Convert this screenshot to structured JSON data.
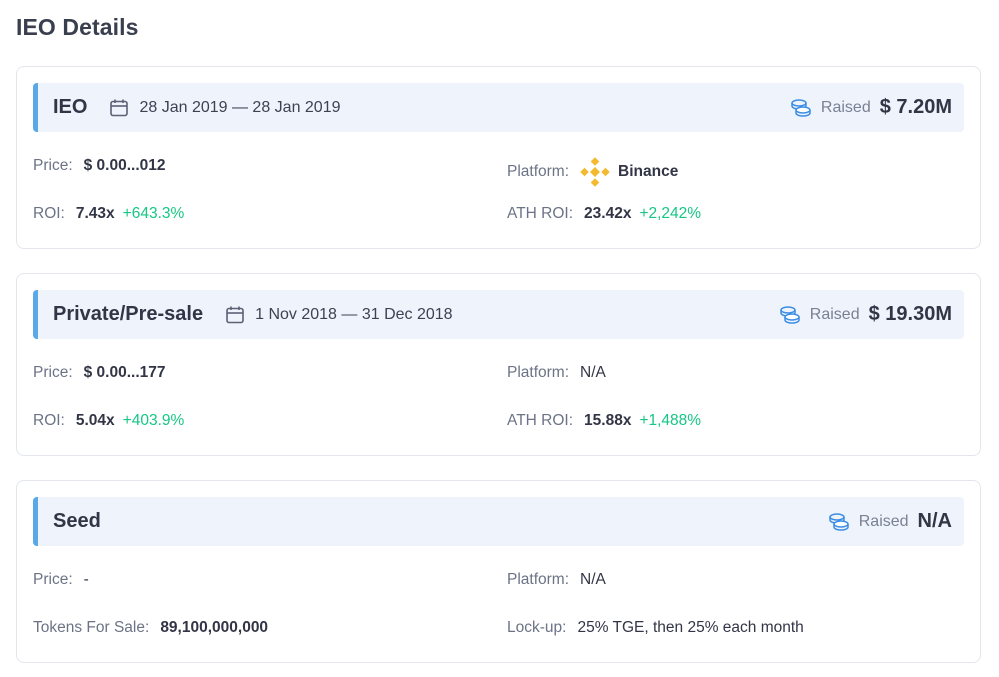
{
  "page_title": "IEO Details",
  "rounds": [
    {
      "name": "IEO",
      "dates": "28 Jan 2019 — 28 Jan 2019",
      "raised_label": "Raised",
      "raised_value": "$ 7.20M",
      "price_label": "Price:",
      "price_value": "$ 0.00...012",
      "platform_label": "Platform:",
      "platform_value": "Binance",
      "platform_icon": "binance-icon",
      "roi_label": "ROI:",
      "roi_value": "7.43x",
      "roi_pct": "+643.3%",
      "ath_roi_label": "ATH ROI:",
      "ath_roi_value": "23.42x",
      "ath_roi_pct": "+2,242%"
    },
    {
      "name": "Private/Pre-sale",
      "dates": "1 Nov 2018 — 31 Dec 2018",
      "raised_label": "Raised",
      "raised_value": "$ 19.30M",
      "price_label": "Price:",
      "price_value": "$ 0.00...177",
      "platform_label": "Platform:",
      "platform_value": "N/A",
      "roi_label": "ROI:",
      "roi_value": "5.04x",
      "roi_pct": "+403.9%",
      "ath_roi_label": "ATH ROI:",
      "ath_roi_value": "15.88x",
      "ath_roi_pct": "+1,488%"
    },
    {
      "name": "Seed",
      "raised_label": "Raised",
      "raised_value": "N/A",
      "price_label": "Price:",
      "price_value": "-",
      "platform_label": "Platform:",
      "platform_value": "N/A",
      "tokens_label": "Tokens For Sale:",
      "tokens_value": "89,100,000,000",
      "lockup_label": "Lock-up:",
      "lockup_value": "25% TGE, then 25% each month"
    }
  ],
  "colors": {
    "accent_bar": "#5aa8e6",
    "header_bg": "#eff3fb",
    "positive": "#16c784",
    "binance": "#f3ba2f"
  }
}
